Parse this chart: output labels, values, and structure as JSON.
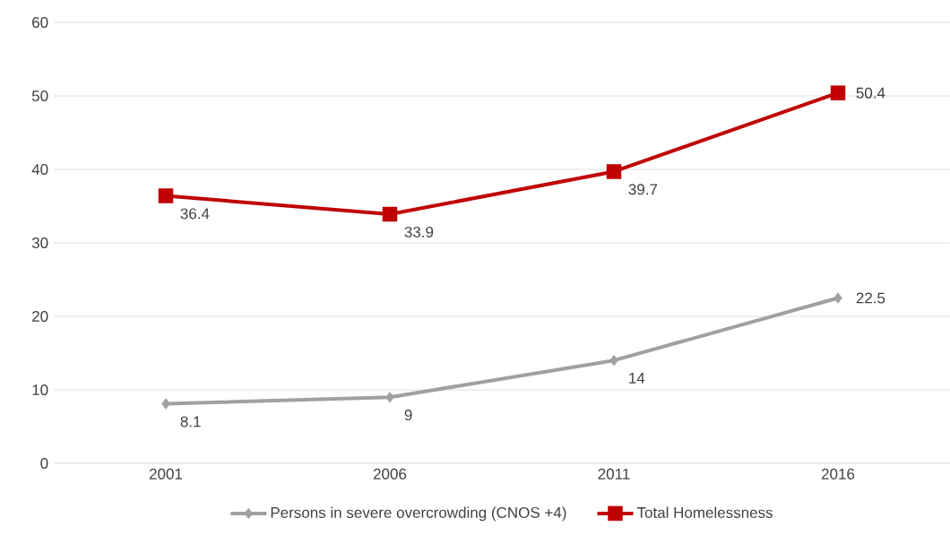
{
  "chart_data": {
    "type": "line",
    "categories": [
      "2001",
      "2006",
      "2011",
      "2016"
    ],
    "series": [
      {
        "name": "Persons in severe overcrowding (CNOS +4)",
        "color": "#a0a0a0",
        "marker": "diamond",
        "values": [
          8.1,
          9,
          14,
          22.5
        ]
      },
      {
        "name": "Total Homelessness",
        "color": "#c00000",
        "marker": "square",
        "values": [
          36.4,
          33.9,
          39.7,
          50.4
        ]
      }
    ],
    "ylim": [
      0,
      60
    ],
    "yticks": [
      0,
      10,
      20,
      30,
      40,
      50,
      60
    ],
    "grid": "y",
    "legend": "bottom",
    "data_labels": true
  }
}
